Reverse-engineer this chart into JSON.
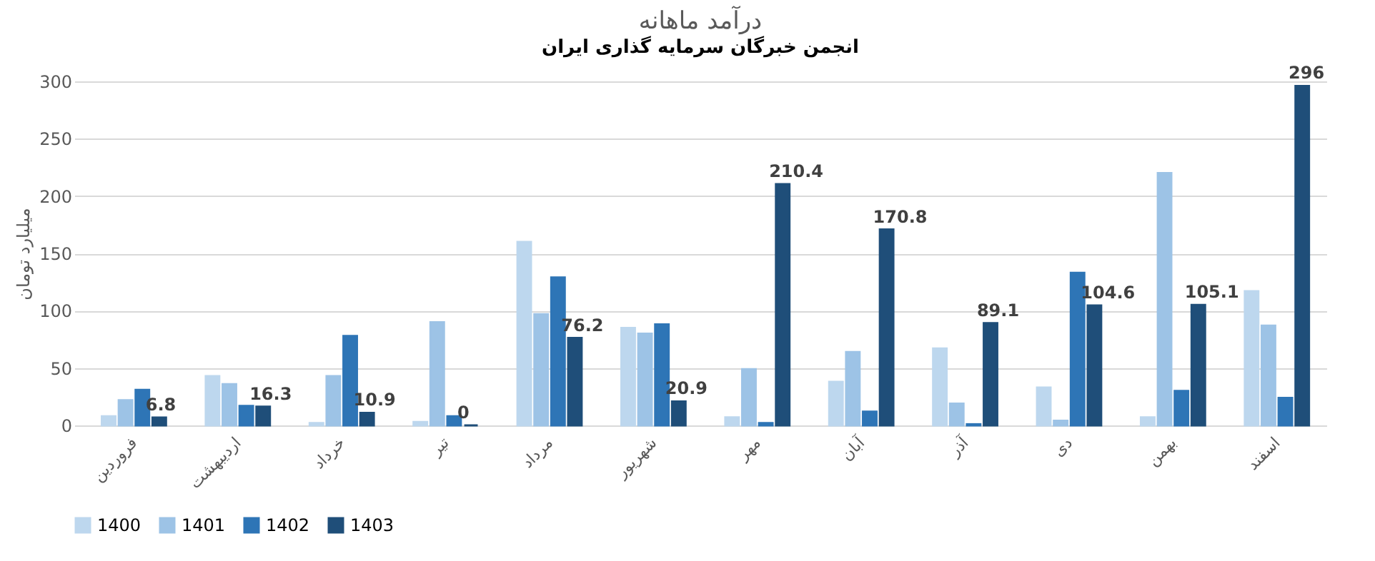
{
  "chart_data": {
    "type": "bar",
    "title": "درآمد ماهانه",
    "subtitle": "انجمن خبرگان سرمایه گذاری ایران",
    "ylabel": "میلیارد تومان",
    "categories": [
      "فروردین",
      "اردیبهشت",
      "خرداد",
      "تیر",
      "مرداد",
      "شهریور",
      "مهر",
      "آبان",
      "آذر",
      "دی",
      "بهمن",
      "اسفند"
    ],
    "series": [
      {
        "name": "1400",
        "color": "#bdd7ee",
        "values": [
          8,
          43,
          2,
          3,
          160,
          85,
          7,
          38,
          67,
          33,
          7,
          117
        ]
      },
      {
        "name": "1401",
        "color": "#9dc3e6",
        "values": [
          22,
          36,
          43,
          90,
          97,
          80,
          49,
          64,
          19,
          4,
          220,
          87
        ]
      },
      {
        "name": "1402",
        "color": "#2e75b6",
        "values": [
          31,
          17,
          78,
          8,
          129,
          88,
          2,
          12,
          1,
          133,
          30,
          24
        ]
      },
      {
        "name": "1403",
        "color": "#1f4e79",
        "values": [
          6.8,
          16.3,
          10.9,
          0,
          76.2,
          20.9,
          210.4,
          170.8,
          89.1,
          104.6,
          105.1,
          296
        ],
        "value_labels": [
          "6.8",
          "16.3",
          "10.9",
          "0",
          "76.2",
          "20.9",
          "210.4",
          "170.8",
          "89.1",
          "104.6",
          "105.1",
          "296"
        ]
      }
    ],
    "ylim": [
      0,
      300
    ],
    "yticks": [
      0,
      50,
      100,
      150,
      200,
      250,
      300
    ],
    "grid": "y",
    "legend": "bottom"
  }
}
